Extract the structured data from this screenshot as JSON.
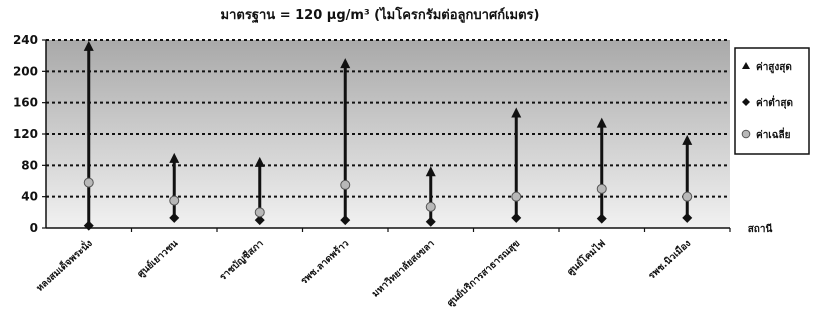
{
  "chart_data": {
    "type": "scatter",
    "title": "มาตรฐาน = 120 µg/m³ (ไมโครกรัมต่อลูกบาศก์เมตร)",
    "xlabel": "สถานี",
    "ylabel": "",
    "ylim": [
      0,
      240
    ],
    "yticks": [
      0,
      40,
      80,
      120,
      160,
      200,
      240
    ],
    "grid": true,
    "legend_position": "right",
    "categories": [
      "หลงสมเด็จพระนั่ง",
      "ศูนย์เยาวชน",
      "ราชบัญชีสภา",
      "รพช.ลาดพร้าว",
      "มหาวิทยาลัยสงขลา",
      "ศูนย์บริการสาธารณสุข",
      "ศูนย์โคมไฟ",
      "รพช.นิวเมือง"
    ],
    "series": [
      {
        "name": "ค่าสูงสุด",
        "values": [
          235,
          92,
          87,
          213,
          75,
          150,
          137,
          115
        ]
      },
      {
        "name": "ค่าต่ำสุด",
        "values": [
          3,
          13,
          10,
          10,
          8,
          13,
          12,
          13
        ]
      },
      {
        "name": "ค่าเฉลี่ย",
        "values": [
          58,
          35,
          20,
          55,
          27,
          40,
          50,
          40
        ]
      }
    ],
    "colors": {
      "plot_top": "#a9a9a9",
      "plot_bottom": "#f1f1f1",
      "line": "#111111",
      "mean_marker": "#b8b8b8"
    }
  }
}
